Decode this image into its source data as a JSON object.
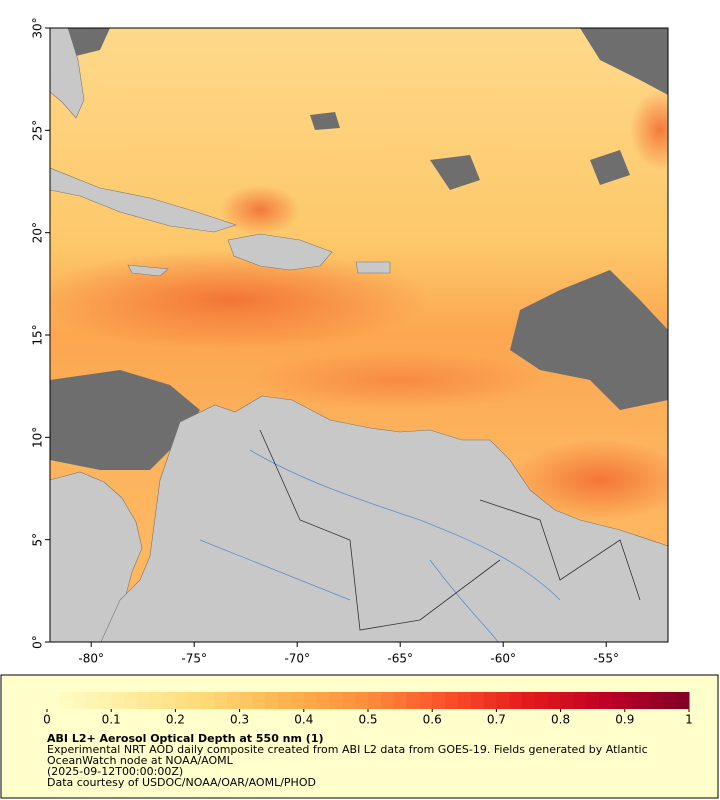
{
  "map": {
    "xlim": [
      -82,
      -52
    ],
    "ylim": [
      0,
      30
    ],
    "xticks": [
      {
        "value": -80,
        "label": "-80°"
      },
      {
        "value": -75,
        "label": "-75°"
      },
      {
        "value": -70,
        "label": "-70°"
      },
      {
        "value": -65,
        "label": "-65°"
      },
      {
        "value": -60,
        "label": "-60°"
      },
      {
        "value": -55,
        "label": "-55°"
      }
    ],
    "yticks": [
      {
        "value": 0,
        "label": "0°"
      },
      {
        "value": 5,
        "label": "5°"
      },
      {
        "value": 10,
        "label": "10°"
      },
      {
        "value": 15,
        "label": "15°"
      },
      {
        "value": 20,
        "label": "20°"
      },
      {
        "value": 25,
        "label": "25°"
      },
      {
        "value": 30,
        "label": "30°"
      }
    ]
  },
  "colorbar": {
    "lim": [
      0,
      1
    ],
    "ticks": [
      0,
      0.1,
      0.2,
      0.3,
      0.4,
      0.5,
      0.6,
      0.7,
      0.8,
      0.9,
      1
    ],
    "colors": [
      "#ffffcc",
      "#ffeda0",
      "#fed976",
      "#feb24c",
      "#fd8d3c",
      "#fc4e2a",
      "#e31a1c",
      "#bd0026",
      "#800026"
    ]
  },
  "legend": {
    "title": "ABI L2+ Aerosol Optical Depth at 550 nm (1)",
    "lines": [
      "Experimental NRT AOD daily composite created from ABI L2 data from GOES-19. Fields generated by Atlantic",
      "OceanWatch node at NOAA/AOML",
      "(2025-09-12T00:00:00Z)",
      "Data courtesy of USDOC/NOAA/OAR/AOML/PHOD"
    ]
  }
}
